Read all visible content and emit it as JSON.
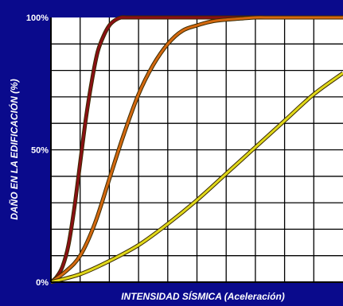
{
  "chart_data": {
    "type": "line",
    "title": "",
    "xlabel": "INTENSIDAD SÍSMICA  (Aceleración)",
    "ylabel": "DAÑO EN LA EDIFICACIÓN (%)",
    "ylim": [
      0,
      100
    ],
    "xlim": [
      0,
      10
    ],
    "yticks": [
      {
        "value": 0,
        "label": "0%"
      },
      {
        "value": 50,
        "label": "50%"
      },
      {
        "value": 100,
        "label": "100%"
      }
    ],
    "grid": true,
    "legend": "none",
    "background": "#ffffff",
    "grid_color": "#000000",
    "series": [
      {
        "color": "#8b0f14",
        "x": [
          0,
          0.2,
          0.4,
          0.6,
          0.8,
          1.0,
          1.2,
          1.4,
          1.6,
          1.8,
          2.0,
          2.2,
          2.4,
          2.6,
          2.8,
          3.0,
          10
        ],
        "y": [
          0,
          2,
          6,
          14,
          28,
          45,
          62,
          76,
          87,
          93,
          97,
          99,
          100,
          100,
          100,
          100,
          100
        ]
      },
      {
        "color": "#d4680f",
        "x": [
          0,
          0.5,
          1.0,
          1.5,
          2.0,
          2.5,
          3.0,
          3.5,
          4.0,
          4.5,
          5.0,
          5.5,
          6.0,
          6.5,
          7.0,
          7.5,
          8.0,
          10
        ],
        "y": [
          0,
          4,
          10,
          22,
          39,
          56,
          71,
          82,
          90,
          95,
          97,
          98.5,
          99.2,
          99.6,
          100,
          100,
          100,
          100
        ]
      },
      {
        "color": "#e0d81a",
        "x": [
          0,
          1,
          2,
          3,
          4,
          5,
          6,
          7,
          8,
          9,
          10
        ],
        "y": [
          0,
          3,
          8,
          14,
          22,
          31,
          41,
          51,
          61,
          71,
          79
        ]
      }
    ]
  }
}
